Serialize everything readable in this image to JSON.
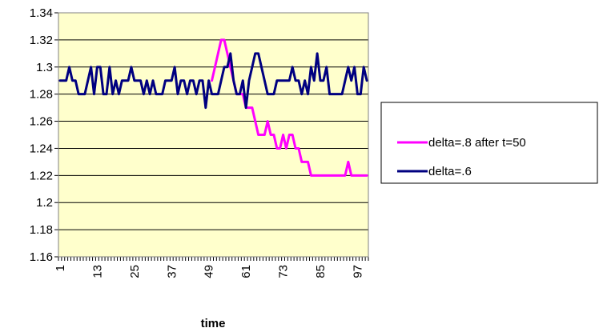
{
  "chart_data": {
    "type": "line",
    "title": "",
    "xlabel": "time",
    "ylabel": "",
    "x_tick_labels": [
      "1",
      "13",
      "25",
      "37",
      "49",
      "61",
      "73",
      "85",
      "97"
    ],
    "y_tick_labels": [
      "1.16",
      "1.18",
      "1.2",
      "1.22",
      "1.24",
      "1.26",
      "1.28",
      "1.3",
      "1.32",
      "1.34"
    ],
    "ylim": [
      1.16,
      1.34
    ],
    "xlim": [
      1,
      100
    ],
    "grid": "horizontal",
    "legend_position": "right",
    "plot_background": "#FFFFCC",
    "series": [
      {
        "name": "delta=.8 after t=50",
        "color": "#FF00FF",
        "x": [
          50,
          51,
          52,
          53,
          54,
          55,
          56,
          57,
          58,
          59,
          60,
          61,
          62,
          63,
          64,
          65,
          66,
          67,
          68,
          69,
          70,
          71,
          72,
          73,
          74,
          75,
          76,
          77,
          78,
          79,
          80,
          81,
          82,
          83,
          84,
          85,
          86,
          87,
          88,
          89,
          90,
          91,
          92,
          93,
          94,
          95,
          96,
          97,
          98,
          99,
          100
        ],
        "values": [
          1.29,
          1.3,
          1.31,
          1.32,
          1.32,
          1.31,
          1.3,
          1.29,
          1.28,
          1.28,
          1.28,
          1.27,
          1.27,
          1.27,
          1.26,
          1.25,
          1.25,
          1.25,
          1.26,
          1.25,
          1.25,
          1.24,
          1.24,
          1.25,
          1.24,
          1.25,
          1.25,
          1.24,
          1.24,
          1.23,
          1.23,
          1.23,
          1.22,
          1.22,
          1.22,
          1.22,
          1.22,
          1.22,
          1.22,
          1.22,
          1.22,
          1.22,
          1.22,
          1.22,
          1.23,
          1.22,
          1.22,
          1.22,
          1.22,
          1.22,
          1.22
        ]
      },
      {
        "name": "delta=.6",
        "color": "#000080",
        "x": [
          1,
          2,
          3,
          4,
          5,
          6,
          7,
          8,
          9,
          10,
          11,
          12,
          13,
          14,
          15,
          16,
          17,
          18,
          19,
          20,
          21,
          22,
          23,
          24,
          25,
          26,
          27,
          28,
          29,
          30,
          31,
          32,
          33,
          34,
          35,
          36,
          37,
          38,
          39,
          40,
          41,
          42,
          43,
          44,
          45,
          46,
          47,
          48,
          49,
          50,
          51,
          52,
          53,
          54,
          55,
          56,
          57,
          58,
          59,
          60,
          61,
          62,
          63,
          64,
          65,
          66,
          67,
          68,
          69,
          70,
          71,
          72,
          73,
          74,
          75,
          76,
          77,
          78,
          79,
          80,
          81,
          82,
          83,
          84,
          85,
          86,
          87,
          88,
          89,
          90,
          91,
          92,
          93,
          94,
          95,
          96,
          97,
          98,
          99,
          100
        ],
        "values": [
          1.29,
          1.29,
          1.29,
          1.3,
          1.29,
          1.29,
          1.28,
          1.28,
          1.28,
          1.29,
          1.3,
          1.28,
          1.3,
          1.3,
          1.28,
          1.28,
          1.3,
          1.28,
          1.29,
          1.28,
          1.29,
          1.29,
          1.29,
          1.3,
          1.29,
          1.29,
          1.29,
          1.28,
          1.29,
          1.28,
          1.29,
          1.28,
          1.28,
          1.28,
          1.29,
          1.29,
          1.29,
          1.3,
          1.28,
          1.29,
          1.29,
          1.28,
          1.29,
          1.29,
          1.28,
          1.29,
          1.29,
          1.27,
          1.29,
          1.28,
          1.28,
          1.28,
          1.29,
          1.3,
          1.3,
          1.31,
          1.29,
          1.28,
          1.28,
          1.29,
          1.27,
          1.29,
          1.3,
          1.31,
          1.31,
          1.3,
          1.29,
          1.28,
          1.28,
          1.28,
          1.29,
          1.29,
          1.29,
          1.29,
          1.29,
          1.3,
          1.29,
          1.29,
          1.28,
          1.29,
          1.28,
          1.3,
          1.29,
          1.31,
          1.29,
          1.29,
          1.3,
          1.28,
          1.28,
          1.28,
          1.28,
          1.28,
          1.29,
          1.3,
          1.29,
          1.3,
          1.28,
          1.28,
          1.3,
          1.29
        ]
      }
    ]
  }
}
